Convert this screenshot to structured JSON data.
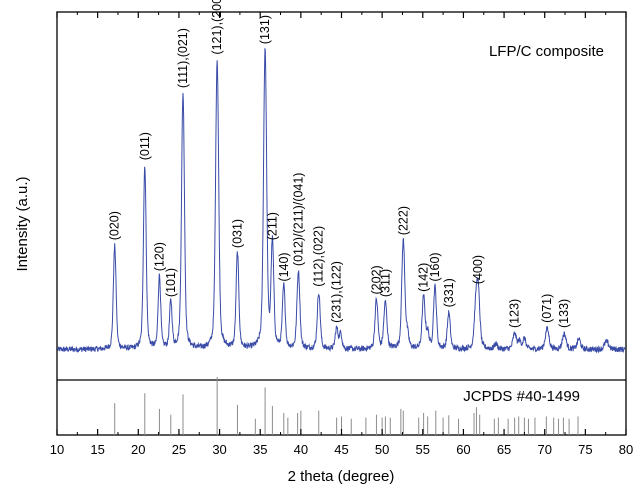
{
  "chart_data": {
    "type": "line",
    "xlabel": "2 theta (degree)",
    "ylabel": "Intensity (a.u.)",
    "xlim": [
      10,
      80
    ],
    "x_ticks": [
      "10",
      "15",
      "20",
      "25",
      "30",
      "35",
      "40",
      "45",
      "50",
      "55",
      "60",
      "65",
      "70",
      "75",
      "80"
    ],
    "series_label": "LFP/C composite",
    "reference_label": "JCPDS #40-1499",
    "colors": {
      "pattern": "#3a4ca8",
      "reference": "#8c8c8c",
      "axes": "#000000"
    },
    "baseline": 0.06,
    "peaks": [
      {
        "x": 17.1,
        "y": 0.4,
        "w": 0.16,
        "label": "(020)"
      },
      {
        "x": 20.8,
        "y": 0.71,
        "w": 0.16,
        "label": "(011)"
      },
      {
        "x": 22.6,
        "y": 0.28,
        "w": 0.15,
        "label": "(120)"
      },
      {
        "x": 24.0,
        "y": 0.18,
        "w": 0.15,
        "label": "(101)"
      },
      {
        "x": 25.5,
        "y": 0.99,
        "w": 0.17,
        "label": "(111),(021)"
      },
      {
        "x": 29.7,
        "y": 1.12,
        "w": 0.18,
        "label": "(121),(200)"
      },
      {
        "x": 32.2,
        "y": 0.37,
        "w": 0.16,
        "label": "(031)"
      },
      {
        "x": 35.6,
        "y": 1.16,
        "w": 0.18,
        "label": "(131)"
      },
      {
        "x": 36.5,
        "y": 0.4,
        "w": 0.16,
        "label": "(211)"
      },
      {
        "x": 37.9,
        "y": 0.24,
        "w": 0.16,
        "label": "(140)"
      },
      {
        "x": 39.7,
        "y": 0.3,
        "w": 0.17,
        "label": "(012)/(211)/(041)"
      },
      {
        "x": 42.2,
        "y": 0.22,
        "w": 0.17,
        "label": "(112),(022)"
      },
      {
        "x": 44.4,
        "y": 0.08,
        "w": 0.16,
        "label": "(231),(122)"
      },
      {
        "x": 49.3,
        "y": 0.19,
        "w": 0.17,
        "label": "(202)"
      },
      {
        "x": 50.4,
        "y": 0.18,
        "w": 0.18,
        "label": "(311)"
      },
      {
        "x": 52.6,
        "y": 0.42,
        "w": 0.18,
        "label": "(222)"
      },
      {
        "x": 55.1,
        "y": 0.2,
        "w": 0.17,
        "label": "(142)"
      },
      {
        "x": 56.5,
        "y": 0.24,
        "w": 0.17,
        "label": "(160)"
      },
      {
        "x": 58.2,
        "y": 0.14,
        "w": 0.17,
        "label": "(331)"
      },
      {
        "x": 61.8,
        "y": 0.23,
        "w": 0.2,
        "label": "(400)"
      },
      {
        "x": 66.3,
        "y": 0.06,
        "w": 0.2,
        "label": "(123)"
      },
      {
        "x": 70.3,
        "y": 0.08,
        "w": 0.22,
        "label": "(071)"
      },
      {
        "x": 72.4,
        "y": 0.06,
        "w": 0.22,
        "label": "(133)"
      }
    ],
    "minor_peaks": [
      {
        "x": 44.9,
        "y": 0.06,
        "w": 0.16
      },
      {
        "x": 53.1,
        "y": 0.05,
        "w": 0.16
      },
      {
        "x": 55.6,
        "y": 0.06,
        "w": 0.16
      },
      {
        "x": 61.5,
        "y": 0.12,
        "w": 0.18
      },
      {
        "x": 64.0,
        "y": 0.02,
        "w": 0.18
      },
      {
        "x": 66.9,
        "y": 0.03,
        "w": 0.18
      },
      {
        "x": 67.5,
        "y": 0.04,
        "w": 0.18
      },
      {
        "x": 74.2,
        "y": 0.04,
        "w": 0.2
      },
      {
        "x": 77.6,
        "y": 0.03,
        "w": 0.25
      }
    ],
    "reference_lines": [
      {
        "x": 17.1,
        "h": 0.55
      },
      {
        "x": 20.8,
        "h": 0.72
      },
      {
        "x": 22.6,
        "h": 0.45
      },
      {
        "x": 24.0,
        "h": 0.35
      },
      {
        "x": 25.5,
        "h": 0.7
      },
      {
        "x": 29.7,
        "h": 1.0
      },
      {
        "x": 32.2,
        "h": 0.52
      },
      {
        "x": 34.4,
        "h": 0.28
      },
      {
        "x": 35.6,
        "h": 0.82
      },
      {
        "x": 36.5,
        "h": 0.5
      },
      {
        "x": 37.9,
        "h": 0.38
      },
      {
        "x": 38.4,
        "h": 0.3
      },
      {
        "x": 39.6,
        "h": 0.38
      },
      {
        "x": 40.0,
        "h": 0.42
      },
      {
        "x": 42.2,
        "h": 0.42
      },
      {
        "x": 44.4,
        "h": 0.3
      },
      {
        "x": 45.0,
        "h": 0.32
      },
      {
        "x": 46.2,
        "h": 0.28
      },
      {
        "x": 48.0,
        "h": 0.3
      },
      {
        "x": 49.3,
        "h": 0.35
      },
      {
        "x": 50.0,
        "h": 0.3
      },
      {
        "x": 50.4,
        "h": 0.32
      },
      {
        "x": 51.0,
        "h": 0.3
      },
      {
        "x": 52.3,
        "h": 0.45
      },
      {
        "x": 52.6,
        "h": 0.42
      },
      {
        "x": 54.5,
        "h": 0.3
      },
      {
        "x": 55.1,
        "h": 0.38
      },
      {
        "x": 55.6,
        "h": 0.32
      },
      {
        "x": 56.6,
        "h": 0.42
      },
      {
        "x": 57.5,
        "h": 0.3
      },
      {
        "x": 58.2,
        "h": 0.34
      },
      {
        "x": 59.4,
        "h": 0.28
      },
      {
        "x": 61.3,
        "h": 0.38
      },
      {
        "x": 61.6,
        "h": 0.48
      },
      {
        "x": 62.0,
        "h": 0.35
      },
      {
        "x": 63.8,
        "h": 0.28
      },
      {
        "x": 64.3,
        "h": 0.3
      },
      {
        "x": 65.5,
        "h": 0.28
      },
      {
        "x": 66.3,
        "h": 0.3
      },
      {
        "x": 66.8,
        "h": 0.32
      },
      {
        "x": 67.5,
        "h": 0.3
      },
      {
        "x": 68.0,
        "h": 0.28
      },
      {
        "x": 68.8,
        "h": 0.3
      },
      {
        "x": 70.2,
        "h": 0.32
      },
      {
        "x": 71.1,
        "h": 0.3
      },
      {
        "x": 71.7,
        "h": 0.28
      },
      {
        "x": 72.3,
        "h": 0.3
      },
      {
        "x": 73.0,
        "h": 0.28
      },
      {
        "x": 74.1,
        "h": 0.32
      }
    ]
  }
}
